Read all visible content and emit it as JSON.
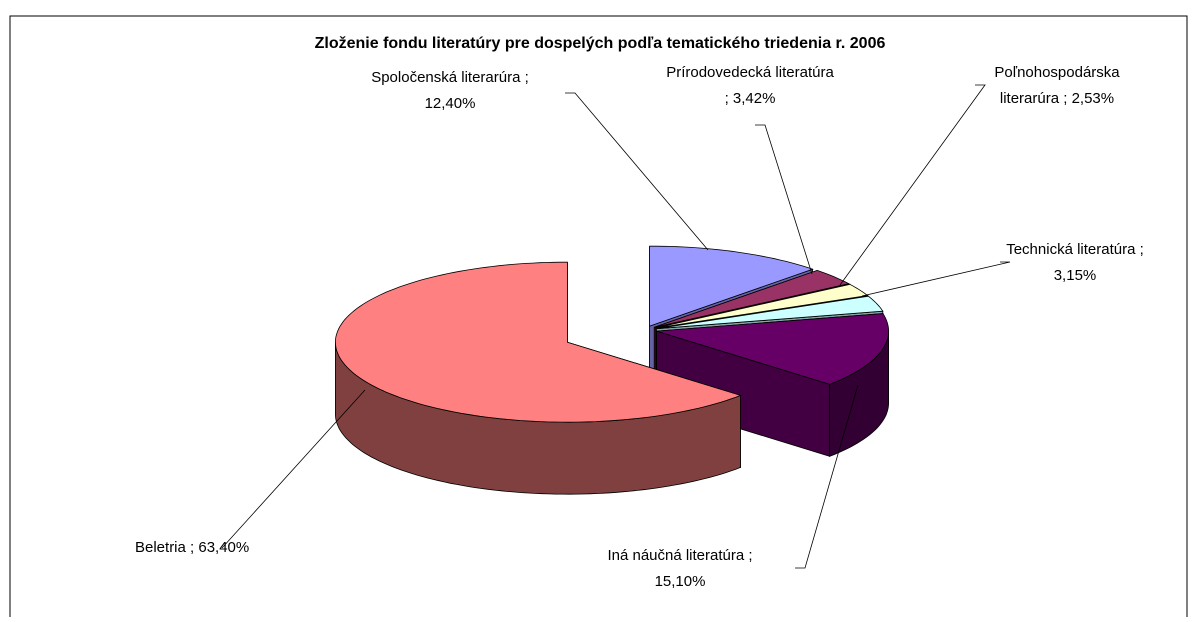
{
  "chart_data": {
    "type": "pie3d",
    "title": "Zloženie fondu literatúry pre dospelých podľa tematického triedenia r. 2006",
    "values": [
      12.4,
      3.42,
      2.53,
      3.15,
      15.1,
      63.4
    ],
    "labels": [
      [
        "Spoločenská literarúra ;",
        "12,40%"
      ],
      [
        "Prírodovedecká literatúra",
        "; 3,42%"
      ],
      [
        "Poľnohospodárska",
        "literarúra ; 2,53%"
      ],
      [
        "Technická literatúra  ;",
        "3,15%"
      ],
      [
        "Iná náučná literatúra ;",
        "15,10%"
      ],
      [
        "Beletria ; 63,40%"
      ]
    ],
    "colors": [
      "#9999ff",
      "#993366",
      "#ffffcc",
      "#ccffff",
      "#660066",
      "#ff8080"
    ]
  }
}
